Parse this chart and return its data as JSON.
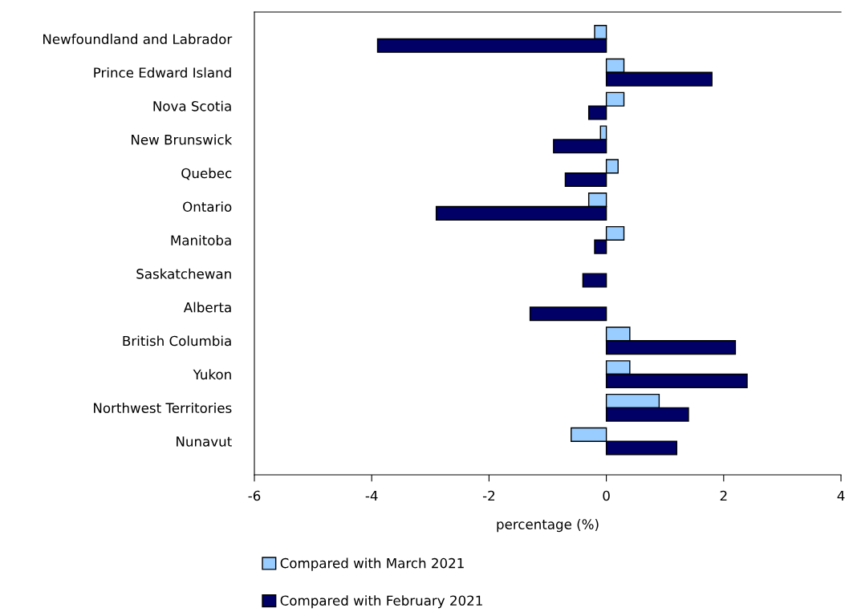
{
  "chart_data": {
    "type": "bar",
    "orientation": "horizontal",
    "xlabel": "percentage (%)",
    "categories": [
      "Newfoundland and Labrador",
      "Prince Edward Island",
      "Nova Scotia",
      "New Brunswick",
      "Quebec",
      "Ontario",
      "Manitoba",
      "Saskatchewan",
      "Alberta",
      "British Columbia",
      "Yukon",
      "Northwest Territories",
      "Nunavut"
    ],
    "series": [
      {
        "name": "Compared with March 2021",
        "color": "#99ccff",
        "values": [
          -0.2,
          0.3,
          0.3,
          -0.1,
          0.2,
          -0.3,
          0.3,
          0,
          0,
          0.4,
          0.4,
          0.9,
          -0.6
        ]
      },
      {
        "name": "Compared with February 2021",
        "color": "#000066",
        "values": [
          -3.9,
          1.8,
          -0.3,
          -0.9,
          -0.7,
          -2.9,
          -0.2,
          -0.4,
          -1.3,
          2.2,
          2.4,
          1.4,
          1.2
        ]
      }
    ],
    "xlim": [
      -6,
      4
    ],
    "xticks": [
      -6,
      -4,
      -2,
      0,
      2,
      4
    ],
    "grid": false,
    "legend": "bottom"
  }
}
